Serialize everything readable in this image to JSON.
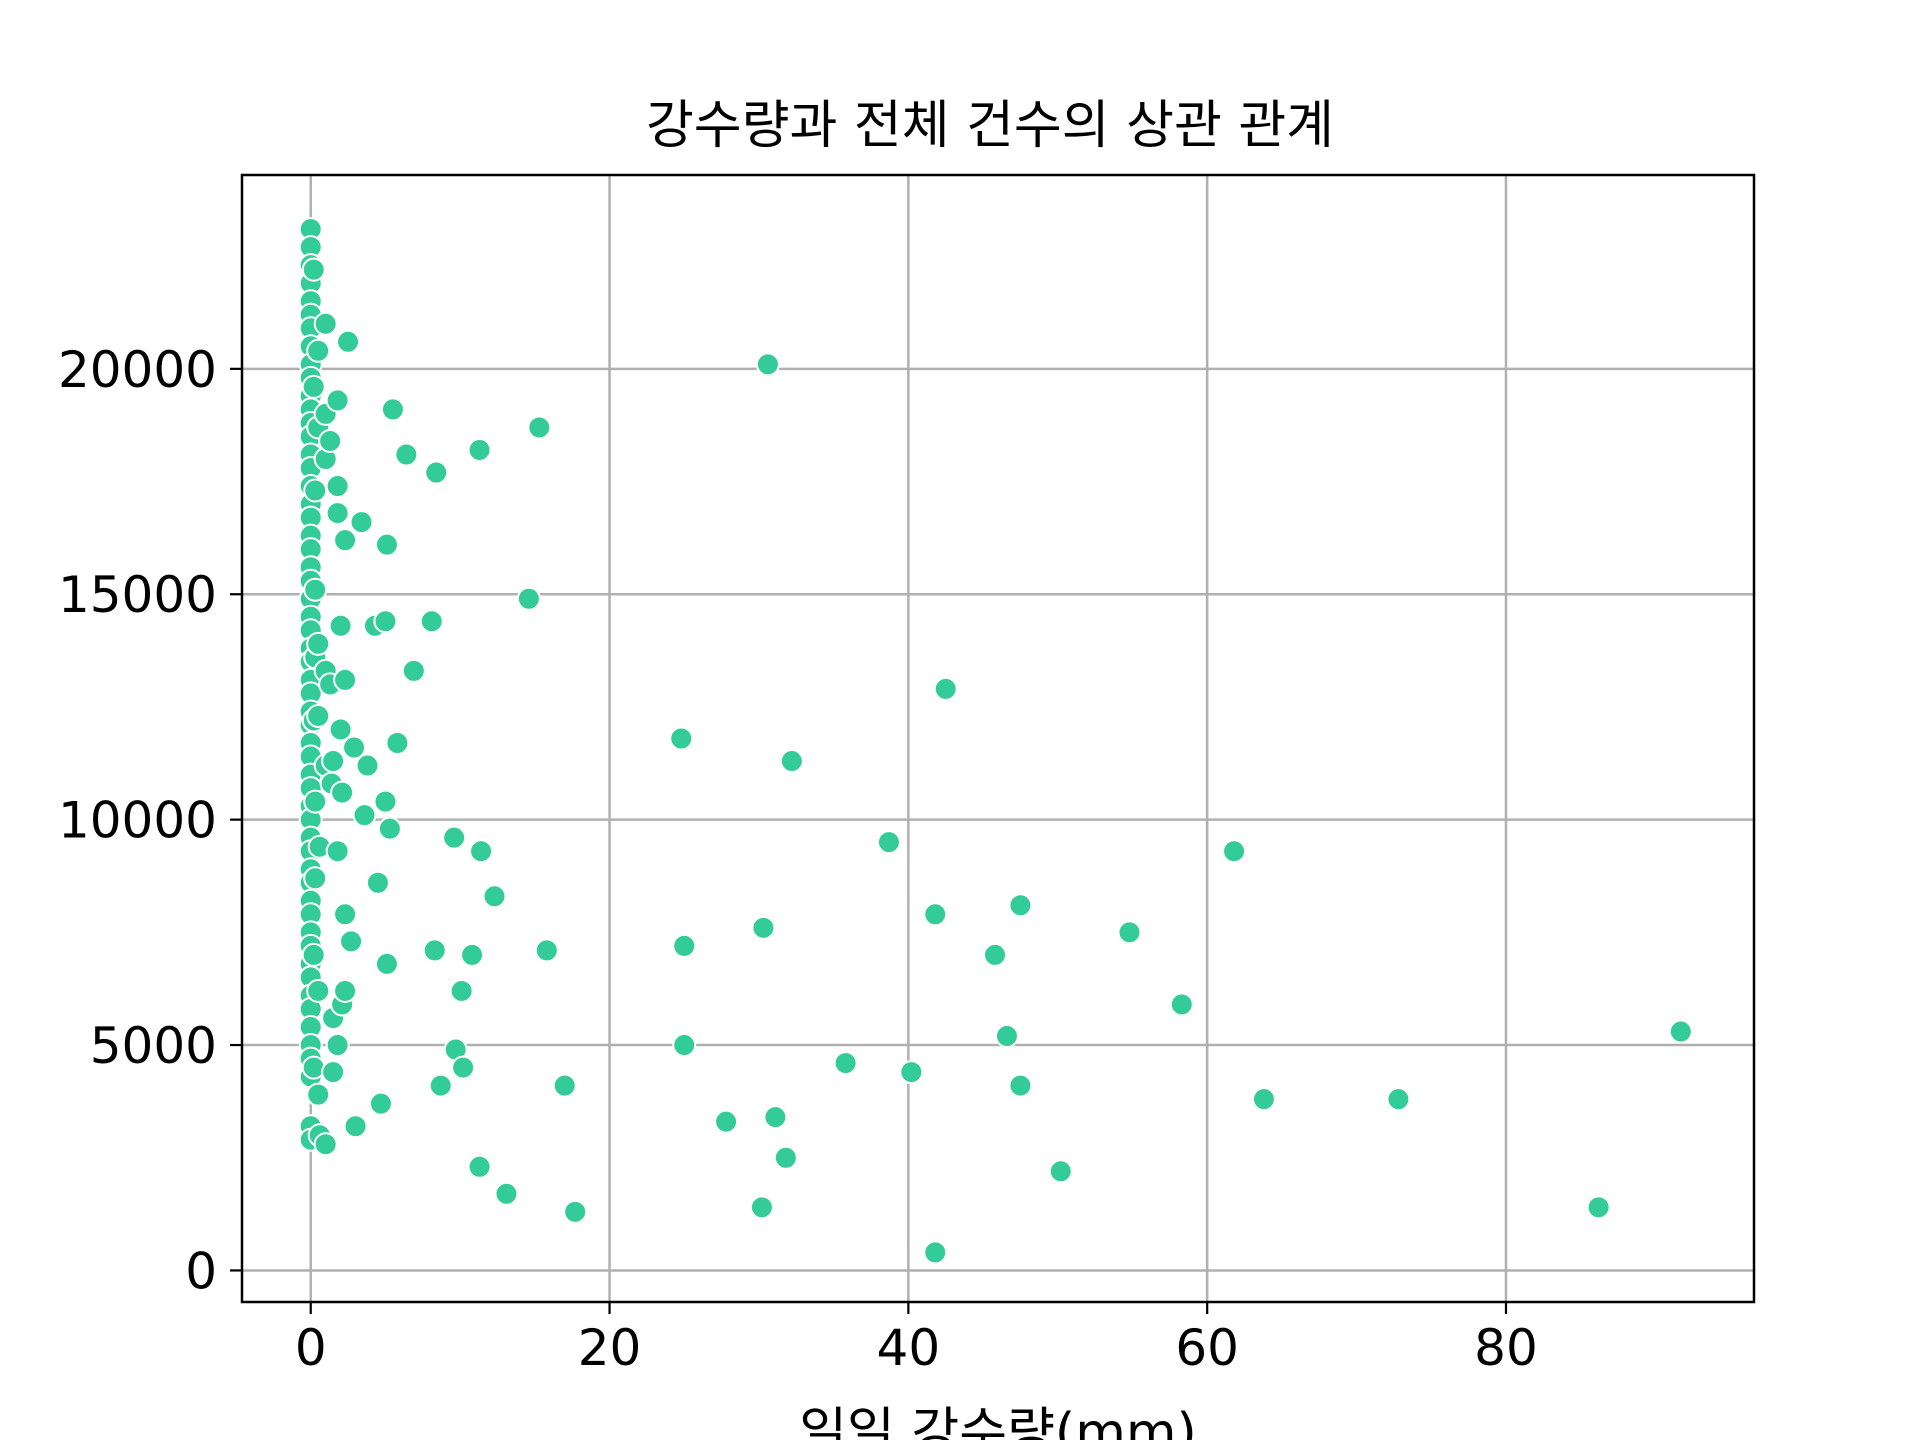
{
  "chart_data": {
    "type": "scatter",
    "title": "강수량과 전체 건수의 상관 관계",
    "xlabel": "일일 강수량(mm)",
    "ylabel": "",
    "xlim": [
      -4.6,
      96.6
    ],
    "ylim": [
      -700,
      24300
    ],
    "x_ticks": [
      "0",
      "20",
      "40",
      "60",
      "80"
    ],
    "y_ticks": [
      "0",
      "5000",
      "10000",
      "15000",
      "20000"
    ],
    "grid": true,
    "marker_color": "#33cc99",
    "marker_edge": "#ffffff",
    "points": [
      [
        0,
        23100
      ],
      [
        0,
        22700
      ],
      [
        0,
        22300
      ],
      [
        0,
        21900
      ],
      [
        0,
        21500
      ],
      [
        0,
        21200
      ],
      [
        0,
        20900
      ],
      [
        0,
        20500
      ],
      [
        0,
        20100
      ],
      [
        0,
        19800
      ],
      [
        0,
        19400
      ],
      [
        0,
        19100
      ],
      [
        0,
        18800
      ],
      [
        0,
        18500
      ],
      [
        0,
        18100
      ],
      [
        0,
        17800
      ],
      [
        0,
        17400
      ],
      [
        0,
        17000
      ],
      [
        0,
        16700
      ],
      [
        0,
        16300
      ],
      [
        0,
        16000
      ],
      [
        0,
        15600
      ],
      [
        0,
        15300
      ],
      [
        0,
        14900
      ],
      [
        0,
        14500
      ],
      [
        0,
        14200
      ],
      [
        0,
        13800
      ],
      [
        0,
        13500
      ],
      [
        0,
        13100
      ],
      [
        0,
        12800
      ],
      [
        0,
        12400
      ],
      [
        0,
        12100
      ],
      [
        0,
        11700
      ],
      [
        0,
        11400
      ],
      [
        0,
        11000
      ],
      [
        0,
        10700
      ],
      [
        0,
        10300
      ],
      [
        0,
        10000
      ],
      [
        0,
        9600
      ],
      [
        0,
        9300
      ],
      [
        0,
        8900
      ],
      [
        0,
        8600
      ],
      [
        0,
        8200
      ],
      [
        0,
        7900
      ],
      [
        0,
        7500
      ],
      [
        0,
        7200
      ],
      [
        0,
        6800
      ],
      [
        0,
        6500
      ],
      [
        0,
        6100
      ],
      [
        0,
        5800
      ],
      [
        0,
        5400
      ],
      [
        0,
        5000
      ],
      [
        0,
        4700
      ],
      [
        0,
        4300
      ],
      [
        0,
        3200
      ],
      [
        0,
        2900
      ],
      [
        0.2,
        22200
      ],
      [
        0.2,
        19600
      ],
      [
        0.3,
        17300
      ],
      [
        0.3,
        15100
      ],
      [
        0.3,
        13600
      ],
      [
        0.2,
        12200
      ],
      [
        0.3,
        10400
      ],
      [
        0.3,
        8700
      ],
      [
        0.2,
        7000
      ],
      [
        0.2,
        4500
      ],
      [
        0.5,
        20400
      ],
      [
        0.5,
        18700
      ],
      [
        0.5,
        13900
      ],
      [
        0.5,
        12300
      ],
      [
        0.6,
        9400
      ],
      [
        0.5,
        6200
      ],
      [
        0.5,
        3900
      ],
      [
        0.6,
        3000
      ],
      [
        1.0,
        21000
      ],
      [
        1.0,
        19000
      ],
      [
        1.0,
        18000
      ],
      [
        1.0,
        13300
      ],
      [
        1.0,
        11200
      ],
      [
        1.0,
        2800
      ],
      [
        1.3,
        18400
      ],
      [
        1.3,
        13000
      ],
      [
        1.4,
        10800
      ],
      [
        1.5,
        11300
      ],
      [
        1.5,
        5600
      ],
      [
        1.5,
        4400
      ],
      [
        1.8,
        19300
      ],
      [
        1.8,
        17400
      ],
      [
        1.8,
        16800
      ],
      [
        1.8,
        9300
      ],
      [
        1.8,
        5000
      ],
      [
        2.0,
        14300
      ],
      [
        2.0,
        12000
      ],
      [
        2.1,
        10600
      ],
      [
        2.1,
        5900
      ],
      [
        2.3,
        16200
      ],
      [
        2.3,
        13100
      ],
      [
        2.3,
        7900
      ],
      [
        2.3,
        6200
      ],
      [
        2.5,
        20600
      ],
      [
        2.7,
        7300
      ],
      [
        2.9,
        11600
      ],
      [
        3.0,
        3200
      ],
      [
        3.4,
        16600
      ],
      [
        3.6,
        10100
      ],
      [
        3.8,
        11200
      ],
      [
        4.3,
        14300
      ],
      [
        4.5,
        8600
      ],
      [
        4.7,
        3700
      ],
      [
        5.0,
        14400
      ],
      [
        5.1,
        16100
      ],
      [
        5.0,
        10400
      ],
      [
        5.1,
        6800
      ],
      [
        5.3,
        9800
      ],
      [
        5.5,
        19100
      ],
      [
        5.8,
        11700
      ],
      [
        6.4,
        18100
      ],
      [
        6.9,
        13300
      ],
      [
        8.1,
        14400
      ],
      [
        8.3,
        7100
      ],
      [
        8.4,
        17700
      ],
      [
        8.7,
        4100
      ],
      [
        9.6,
        9600
      ],
      [
        9.7,
        4900
      ],
      [
        10.1,
        6200
      ],
      [
        10.2,
        4500
      ],
      [
        10.8,
        7000
      ],
      [
        11.3,
        18200
      ],
      [
        11.4,
        9300
      ],
      [
        11.3,
        2300
      ],
      [
        12.3,
        8300
      ],
      [
        13.1,
        1700
      ],
      [
        14.6,
        14900
      ],
      [
        15.3,
        18700
      ],
      [
        15.8,
        7100
      ],
      [
        17.0,
        4100
      ],
      [
        17.7,
        1300
      ],
      [
        24.8,
        11800
      ],
      [
        25.0,
        7200
      ],
      [
        25.0,
        5000
      ],
      [
        27.8,
        3300
      ],
      [
        30.2,
        1400
      ],
      [
        30.3,
        7600
      ],
      [
        30.6,
        20100
      ],
      [
        31.1,
        3400
      ],
      [
        31.8,
        2500
      ],
      [
        32.2,
        11300
      ],
      [
        35.8,
        4600
      ],
      [
        38.7,
        9500
      ],
      [
        40.2,
        4400
      ],
      [
        41.8,
        7900
      ],
      [
        41.8,
        400
      ],
      [
        42.5,
        12900
      ],
      [
        45.8,
        7000
      ],
      [
        46.6,
        5200
      ],
      [
        47.5,
        8100
      ],
      [
        47.5,
        4100
      ],
      [
        50.2,
        2200
      ],
      [
        54.8,
        7500
      ],
      [
        58.3,
        5900
      ],
      [
        61.8,
        9300
      ],
      [
        63.8,
        3800
      ],
      [
        72.8,
        3800
      ],
      [
        86.2,
        1400
      ],
      [
        91.7,
        5300
      ]
    ]
  }
}
